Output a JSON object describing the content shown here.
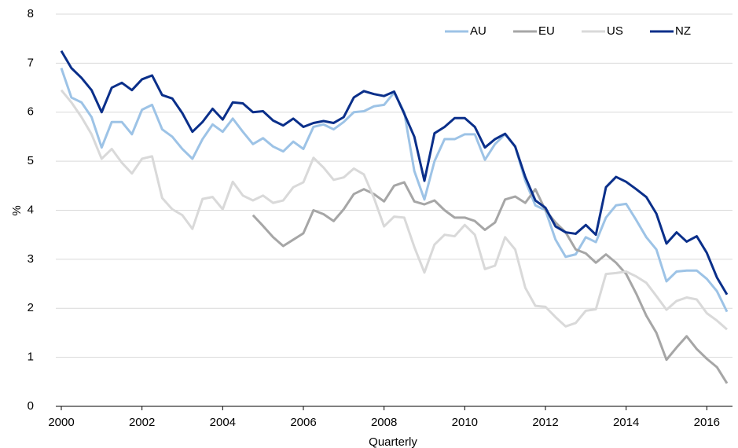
{
  "chart_data": {
    "type": "line",
    "xlabel": "Quarterly",
    "ylabel": "%",
    "categories": [
      "2000",
      null,
      null,
      null,
      null,
      null,
      null,
      null,
      "2002",
      null,
      null,
      null,
      null,
      null,
      null,
      null,
      "2004",
      null,
      null,
      null,
      null,
      null,
      null,
      null,
      "2006",
      null,
      null,
      null,
      null,
      null,
      null,
      null,
      "2008",
      null,
      null,
      null,
      null,
      null,
      null,
      null,
      "2010",
      null,
      null,
      null,
      null,
      null,
      null,
      null,
      "2012",
      null,
      null,
      null,
      null,
      null,
      null,
      null,
      "2014",
      null,
      null,
      null,
      null,
      null,
      null,
      null,
      "2016",
      null,
      null
    ],
    "series": [
      {
        "name": "AU",
        "color": "#9dc3e6",
        "values": [
          6.9,
          6.3,
          6.2,
          5.9,
          5.28,
          5.8,
          5.8,
          5.55,
          6.05,
          6.15,
          5.65,
          5.5,
          5.25,
          5.05,
          5.45,
          5.75,
          5.6,
          5.87,
          5.6,
          5.35,
          5.47,
          5.3,
          5.2,
          5.4,
          5.25,
          5.7,
          5.75,
          5.65,
          5.8,
          6.0,
          6.02,
          6.12,
          6.15,
          6.4,
          6.0,
          4.8,
          4.22,
          5.0,
          5.45,
          5.45,
          5.55,
          5.55,
          5.03,
          5.35,
          5.55,
          5.3,
          4.6,
          4.1,
          4.0,
          3.4,
          3.05,
          3.1,
          3.45,
          3.35,
          3.85,
          4.1,
          4.13,
          3.8,
          3.45,
          3.2,
          2.55,
          2.75,
          2.77,
          2.77,
          2.6,
          2.35,
          1.93
        ]
      },
      {
        "name": "EU",
        "color": "#a6a6a6",
        "values": [
          null,
          null,
          null,
          null,
          null,
          null,
          null,
          null,
          null,
          null,
          null,
          null,
          null,
          null,
          null,
          null,
          null,
          null,
          null,
          3.9,
          3.68,
          3.45,
          3.27,
          3.4,
          3.53,
          4.0,
          3.92,
          3.78,
          4.02,
          4.33,
          4.43,
          4.33,
          4.18,
          4.5,
          4.57,
          4.18,
          4.12,
          4.2,
          4.0,
          3.85,
          3.85,
          3.78,
          3.6,
          3.75,
          4.22,
          4.28,
          4.15,
          4.43,
          4.0,
          3.75,
          3.55,
          3.2,
          3.12,
          2.93,
          3.1,
          2.93,
          2.7,
          2.3,
          1.85,
          1.5,
          0.95,
          1.2,
          1.43,
          1.17,
          0.97,
          0.8,
          0.47
        ]
      },
      {
        "name": "US",
        "color": "#d9d9d9",
        "values": [
          6.45,
          6.2,
          5.9,
          5.55,
          5.05,
          5.25,
          4.97,
          4.75,
          5.05,
          5.1,
          4.25,
          4.02,
          3.9,
          3.62,
          4.23,
          4.27,
          4.02,
          4.58,
          4.3,
          4.2,
          4.3,
          4.15,
          4.2,
          4.47,
          4.57,
          5.07,
          4.87,
          4.62,
          4.67,
          4.85,
          4.73,
          4.25,
          3.67,
          3.87,
          3.85,
          3.25,
          2.73,
          3.3,
          3.5,
          3.47,
          3.7,
          3.5,
          2.8,
          2.87,
          3.45,
          3.2,
          2.42,
          2.05,
          2.03,
          1.82,
          1.63,
          1.7,
          1.95,
          1.98,
          2.7,
          2.72,
          2.75,
          2.65,
          2.52,
          2.25,
          1.97,
          2.15,
          2.22,
          2.18,
          1.9,
          1.75,
          1.57
        ]
      },
      {
        "name": "NZ",
        "color": "#0a2f8a",
        "values": [
          7.25,
          6.9,
          6.7,
          6.45,
          6.0,
          6.5,
          6.6,
          6.45,
          6.67,
          6.75,
          6.35,
          6.28,
          5.98,
          5.6,
          5.8,
          6.07,
          5.85,
          6.2,
          6.18,
          6.0,
          6.02,
          5.83,
          5.73,
          5.87,
          5.7,
          5.78,
          5.82,
          5.78,
          5.9,
          6.3,
          6.43,
          6.37,
          6.33,
          6.42,
          5.97,
          5.5,
          4.6,
          5.57,
          5.7,
          5.88,
          5.88,
          5.7,
          5.28,
          5.45,
          5.56,
          5.3,
          4.68,
          4.2,
          4.05,
          3.67,
          3.55,
          3.52,
          3.7,
          3.5,
          4.47,
          4.68,
          4.58,
          4.43,
          4.27,
          3.93,
          3.32,
          3.55,
          3.36,
          3.47,
          3.13,
          2.63,
          2.28
        ]
      }
    ],
    "ylim": [
      0,
      8
    ],
    "yticks": [
      0,
      1,
      2,
      3,
      4,
      5,
      6,
      7,
      8
    ],
    "grid": true,
    "legend": "top-right"
  }
}
